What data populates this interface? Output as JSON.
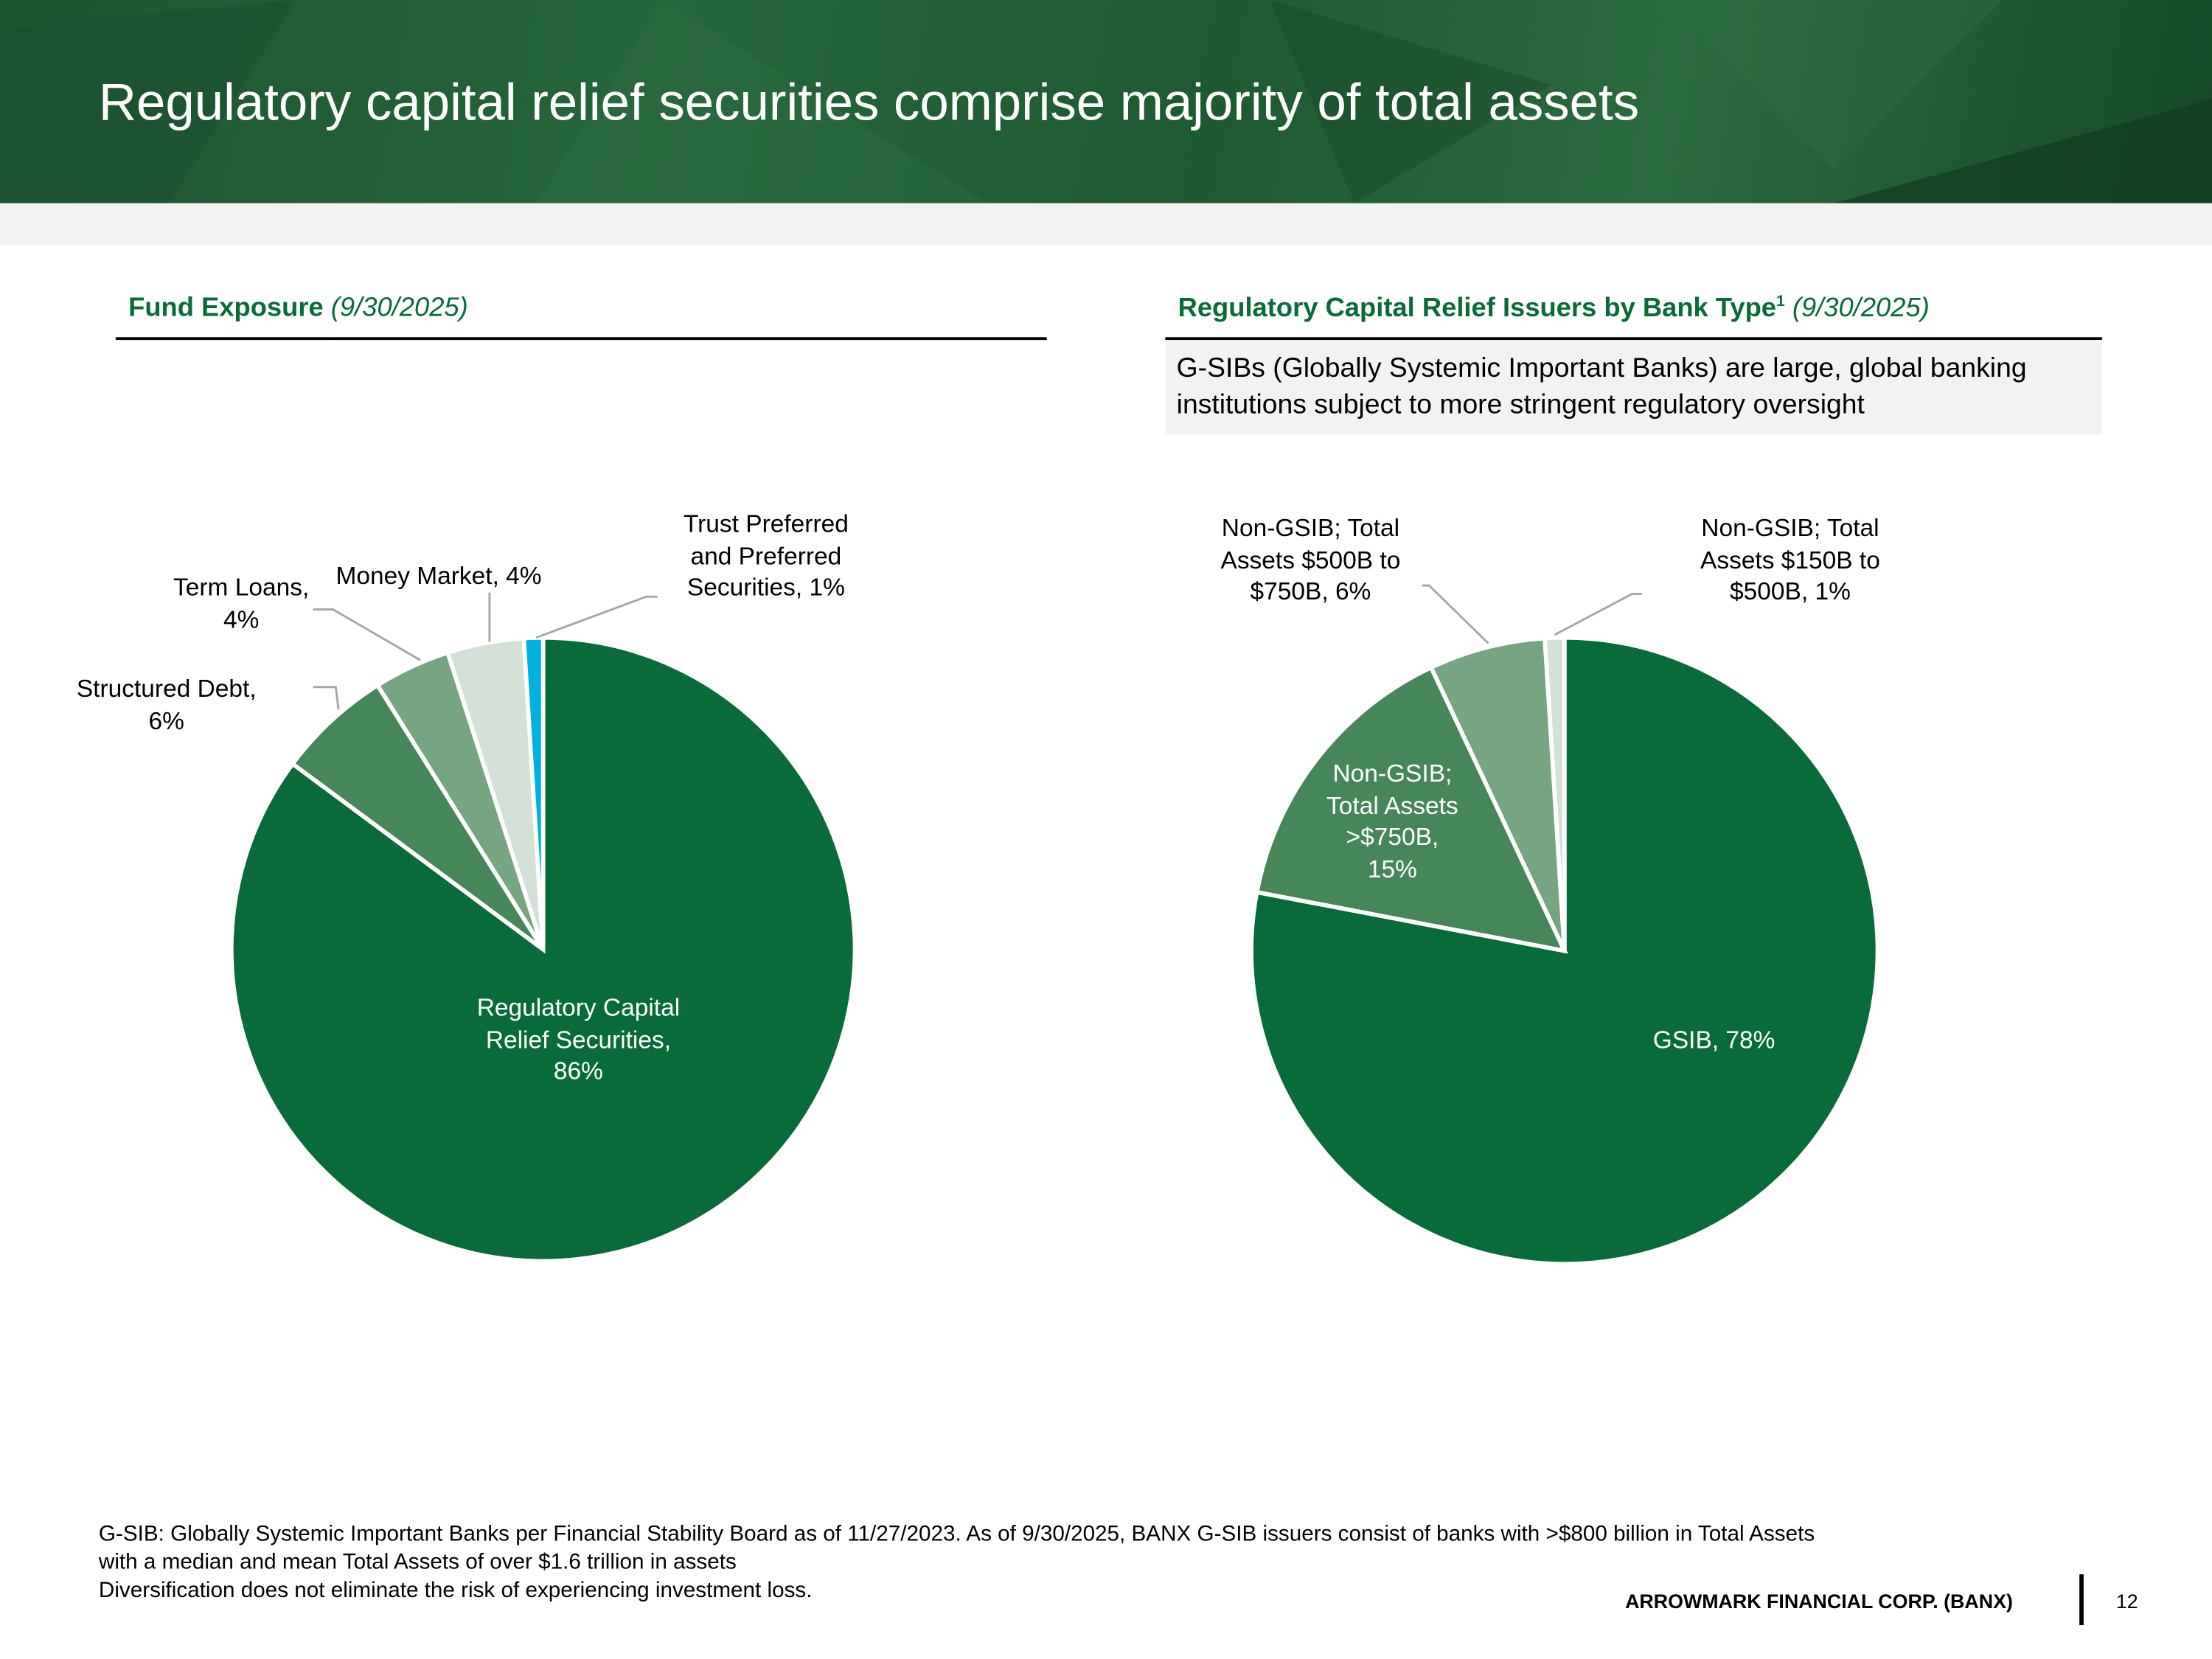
{
  "header": {
    "title": "Regulatory capital relief securities comprise majority of total assets"
  },
  "left": {
    "title": "Fund Exposure",
    "date": "(9/30/2025)"
  },
  "right": {
    "title": "Regulatory Capital Relief Issuers by Bank Type",
    "sup": "1",
    "date": "(9/30/2025)",
    "note": "G-SIBs (Globally Systemic Important Banks) are large, global banking institutions subject to more stringent regulatory oversight"
  },
  "chart_data": [
    {
      "type": "pie",
      "title": "Fund Exposure (9/30/2025)",
      "start": "12 o'clock, clockwise",
      "slices": [
        {
          "label": "Regulatory Capital Relief Securities",
          "value": 86,
          "color": "#0a6b3a",
          "lines": [
            "Regulatory Capital",
            "Relief Securities,",
            "86%"
          ]
        },
        {
          "label": "Structured Debt",
          "value": 6,
          "color": "#46875a",
          "lines": [
            "Structured Debt,",
            "6%"
          ]
        },
        {
          "label": "Term Loans",
          "value": 4,
          "color": "#76a582",
          "lines": [
            "Term Loans,",
            "4%"
          ]
        },
        {
          "label": "Money Market",
          "value": 4,
          "color": "#d3e1d6",
          "lines": [
            "Money Market, 4%"
          ]
        },
        {
          "label": "Trust Preferred and Preferred Securities",
          "value": 1,
          "color": "#00b0e0",
          "lines": [
            "Trust Preferred",
            "and Preferred",
            "Securities, 1%"
          ]
        }
      ]
    },
    {
      "type": "pie",
      "title": "Regulatory Capital Relief Issuers by Bank Type (9/30/2025)",
      "start": "12 o'clock, clockwise",
      "slices": [
        {
          "label": "GSIB",
          "value": 78,
          "color": "#0a6b3a",
          "lines": [
            "GSIB, 78%"
          ]
        },
        {
          "label": "Non-GSIB; Total Assets >$750B",
          "value": 15,
          "color": "#46875a",
          "lines": [
            "Non-GSIB;",
            "Total Assets",
            ">$750B,",
            "15%"
          ]
        },
        {
          "label": "Non-GSIB; Total Assets $500B to $750B",
          "value": 6,
          "color": "#76a582",
          "lines": [
            "Non-GSIB; Total",
            "Assets $500B to",
            "$750B, 6%"
          ]
        },
        {
          "label": "Non-GSIB; Total Assets $150B to $500B",
          "value": 1,
          "color": "#d3e1d6",
          "lines": [
            "Non-GSIB; Total",
            "Assets $150B to",
            "$500B, 1%"
          ]
        }
      ]
    }
  ],
  "footer": {
    "line1": "G-SIB:  Globally Systemic Important Banks per Financial Stability Board as of 11/27/2023. As of 9/30/2025, BANX G-SIB issuers consist of banks with >$800 billion in Total Assets",
    "line2": "with a median and mean Total Assets of over $1.6 trillion in assets",
    "line3": "Diversification does not eliminate the risk of experiencing investment loss.",
    "brand": "ARROWMARK FINANCIAL CORP. (BANX)",
    "page": "12"
  }
}
